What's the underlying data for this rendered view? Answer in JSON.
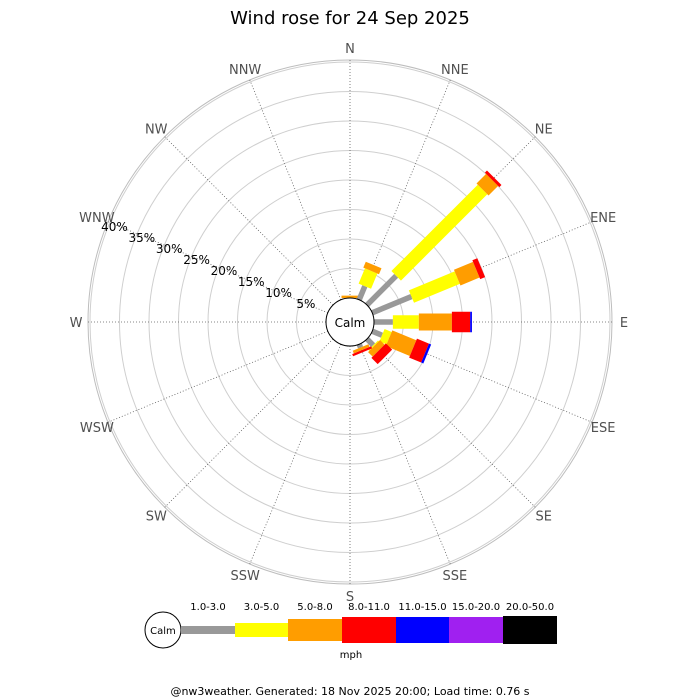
{
  "chart_data": {
    "type": "wind-rose",
    "title": "Wind rose for 24 Sep 2025",
    "directions": [
      "N",
      "NNE",
      "NE",
      "ENE",
      "E",
      "ESE",
      "SE",
      "SSE",
      "S",
      "SSW",
      "SW",
      "WSW",
      "W",
      "WNW",
      "NW",
      "NNW"
    ],
    "ring_labels": [
      "5%",
      "10%",
      "15%",
      "20%",
      "25%",
      "30%",
      "35%",
      "40%"
    ],
    "calm_label": "Calm",
    "speed_bins": [
      {
        "label": "1.0-3.0",
        "color": "#999999"
      },
      {
        "label": "3.0-5.0",
        "color": "#ffff00"
      },
      {
        "label": "5.0-8.0",
        "color": "#ff9d00"
      },
      {
        "label": "8.0-11.0",
        "color": "#ff0000"
      },
      {
        "label": "11.0-15.0",
        "color": "#0000ff"
      },
      {
        "label": "15.0-20.0",
        "color": "#a020f0"
      },
      {
        "label": "20.0-50.0",
        "color": "#000000"
      }
    ],
    "unit": "mph",
    "series": [
      {
        "direction": "N",
        "percent": [
          0.0,
          0.0,
          0.4,
          0.0,
          0.0,
          0.0,
          0.0
        ]
      },
      {
        "direction": "NNE",
        "percent": [
          2.5,
          2.8,
          1.1,
          0.0,
          0.0,
          0.0,
          0.0
        ]
      },
      {
        "direction": "NE",
        "percent": [
          7.0,
          20.7,
          2.3,
          0.5,
          0.0,
          0.0,
          0.0
        ]
      },
      {
        "direction": "ENE",
        "percent": [
          7.2,
          8.4,
          3.5,
          0.9,
          0.0,
          0.0,
          0.0
        ]
      },
      {
        "direction": "E",
        "percent": [
          3.2,
          4.4,
          5.6,
          3.1,
          0.3,
          0.0,
          0.0
        ]
      },
      {
        "direction": "ESE",
        "percent": [
          1.8,
          1.3,
          4.4,
          2.2,
          0.4,
          0.0,
          0.0
        ]
      },
      {
        "direction": "SE",
        "percent": [
          1.5,
          0.2,
          1.1,
          1.5,
          0.0,
          0.0,
          0.0
        ]
      },
      {
        "direction": "SSE",
        "percent": [
          0.6,
          0.0,
          0.5,
          0.4,
          0.0,
          0.0,
          0.0
        ]
      },
      {
        "direction": "S",
        "percent": [
          0.0,
          0.0,
          0.0,
          0.0,
          0.0,
          0.0,
          0.0
        ]
      },
      {
        "direction": "SSW",
        "percent": [
          0.0,
          0.0,
          0.0,
          0.0,
          0.0,
          0.0,
          0.0
        ]
      },
      {
        "direction": "SW",
        "percent": [
          0.0,
          0.0,
          0.0,
          0.0,
          0.0,
          0.0,
          0.0
        ]
      },
      {
        "direction": "WSW",
        "percent": [
          0.0,
          0.0,
          0.0,
          0.0,
          0.0,
          0.0,
          0.0
        ]
      },
      {
        "direction": "W",
        "percent": [
          0.0,
          0.0,
          0.0,
          0.0,
          0.0,
          0.0,
          0.0
        ]
      },
      {
        "direction": "WNW",
        "percent": [
          0.0,
          0.0,
          0.0,
          0.0,
          0.0,
          0.0,
          0.0
        ]
      },
      {
        "direction": "NW",
        "percent": [
          0.0,
          0.0,
          0.0,
          0.0,
          0.0,
          0.0,
          0.0
        ]
      },
      {
        "direction": "NNW",
        "percent": [
          0.0,
          0.0,
          0.0,
          0.0,
          0.0,
          0.0,
          0.0
        ]
      }
    ],
    "grid": true
  },
  "footer": "@nw3weather. Generated: 18 Nov 2025 20:00; Load time: 0.76 s"
}
